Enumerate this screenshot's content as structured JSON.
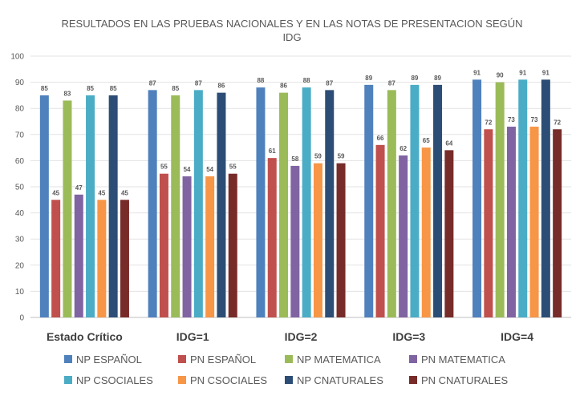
{
  "chart_data": {
    "type": "bar",
    "title": "RESULTADOS EN LAS PRUEBAS NACIONALES Y EN LAS NOTAS DE PRESENTACION SEGÚN IDG",
    "title_lines": [
      "RESULTADOS EN LAS PRUEBAS NACIONALES Y EN LAS NOTAS DE PRESENTACION SEGÚN",
      "IDG"
    ],
    "categories": [
      "Estado Crítico",
      "IDG=1",
      "IDG=2",
      "IDG=3",
      "IDG=4"
    ],
    "ylim": [
      0,
      100
    ],
    "yticks": [
      0,
      10,
      20,
      30,
      40,
      50,
      60,
      70,
      80,
      90,
      100
    ],
    "grid": true,
    "legend_position": "bottom",
    "series": [
      {
        "name": "NP ESPAÑOL",
        "color": "#4f81bd",
        "values": [
          85,
          87,
          88,
          89,
          91
        ]
      },
      {
        "name": "PN ESPAÑOL",
        "color": "#c0504d",
        "values": [
          45,
          55,
          61,
          66,
          72
        ]
      },
      {
        "name": "NP MATEMATICA",
        "color": "#9bbb59",
        "values": [
          83,
          85,
          86,
          87,
          90
        ]
      },
      {
        "name": "PN MATEMATICA",
        "color": "#8064a2",
        "values": [
          47,
          54,
          58,
          62,
          73
        ]
      },
      {
        "name": "NP CSOCIALES",
        "color": "#4bacc6",
        "values": [
          85,
          87,
          88,
          89,
          91
        ]
      },
      {
        "name": "PN CSOCIALES",
        "color": "#f79646",
        "values": [
          45,
          54,
          59,
          65,
          73
        ]
      },
      {
        "name": "NP CNATURALES",
        "color": "#2c4d75",
        "values": [
          85,
          86,
          87,
          89,
          91
        ]
      },
      {
        "name": "PN CNATURALES",
        "color": "#772c2a",
        "values": [
          45,
          55,
          59,
          64,
          72
        ]
      }
    ]
  }
}
